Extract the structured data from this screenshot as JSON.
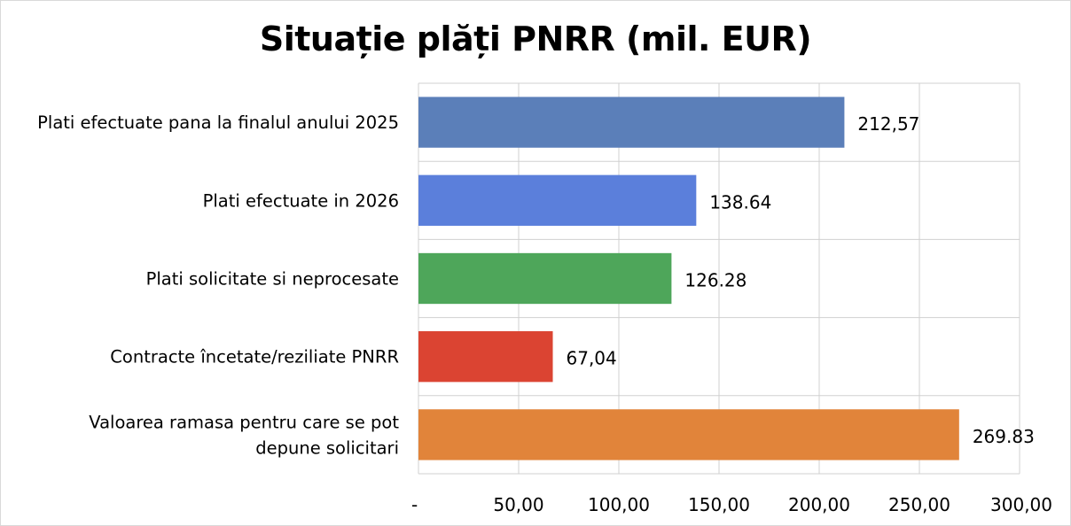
{
  "chart_data": {
    "type": "bar",
    "orientation": "horizontal",
    "title": "Situație plăți PNRR (mil. EUR)",
    "categories": [
      [
        "Plati efectuate pana la finalul anului 2025"
      ],
      [
        "Plati efectuate in 2026"
      ],
      [
        "Plati solicitate si neprocesate"
      ],
      [
        "Contracte încetate/reziliate PNRR"
      ],
      [
        "Valoarea ramasa pentru care se pot",
        "depune solicitari"
      ]
    ],
    "values": [
      212.57,
      138.64,
      126.28,
      67.04,
      269.83
    ],
    "data_labels": [
      "212,57",
      "138.64",
      "126.28",
      "67,04",
      "269.83"
    ],
    "colors": [
      "#5b7fb9",
      "#5b7fdb",
      "#4ea65a",
      "#db4432",
      "#e1843a"
    ],
    "xlim": [
      0,
      300
    ],
    "x_ticks": [
      0,
      50,
      100,
      150,
      200,
      250,
      300
    ],
    "x_tick_labels": [
      "-",
      "50,00",
      "100,00",
      "150,00",
      "200,00",
      "250,00",
      "300,00"
    ],
    "grid": true,
    "legend": "none"
  }
}
